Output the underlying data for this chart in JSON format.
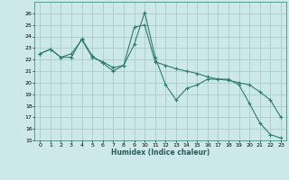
{
  "xlabel": "Humidex (Indice chaleur)",
  "background_color": "#cce8e8",
  "grid_color": "#aacccc",
  "line_color": "#2e7d6e",
  "xlim": [
    -0.5,
    23.5
  ],
  "ylim": [
    15,
    27
  ],
  "yticks": [
    15,
    16,
    17,
    18,
    19,
    20,
    21,
    22,
    23,
    24,
    25,
    26
  ],
  "xticks": [
    0,
    1,
    2,
    3,
    4,
    5,
    6,
    7,
    8,
    9,
    10,
    11,
    12,
    13,
    14,
    15,
    16,
    17,
    18,
    19,
    20,
    21,
    22,
    23
  ],
  "series1_x": [
    0,
    1,
    2,
    3,
    4,
    5,
    6,
    7,
    8,
    9,
    10,
    11,
    12,
    13,
    14,
    15,
    16,
    17,
    18,
    19,
    20,
    21,
    22,
    23
  ],
  "series1_y": [
    22.5,
    22.9,
    22.2,
    22.2,
    23.8,
    22.3,
    21.7,
    21.0,
    21.5,
    23.3,
    26.1,
    22.2,
    19.8,
    18.5,
    19.5,
    19.8,
    20.3,
    20.3,
    20.3,
    19.8,
    18.2,
    16.5,
    15.5,
    15.2
  ],
  "series2_x": [
    0,
    1,
    2,
    3,
    4,
    5,
    6,
    7,
    8,
    9,
    10,
    11,
    12,
    13,
    14,
    15,
    16,
    17,
    18,
    19,
    20,
    21,
    22,
    23
  ],
  "series2_y": [
    22.5,
    22.9,
    22.2,
    22.5,
    23.7,
    22.2,
    21.8,
    21.3,
    21.5,
    24.8,
    25.0,
    21.8,
    21.5,
    21.2,
    21.0,
    20.8,
    20.5,
    20.3,
    20.2,
    20.0,
    19.8,
    19.2,
    18.5,
    17.0
  ]
}
